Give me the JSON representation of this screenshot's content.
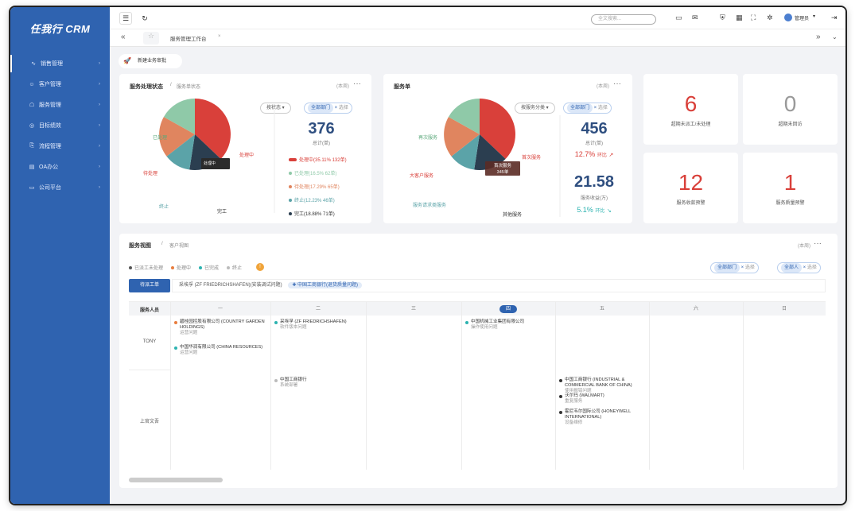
{
  "app": {
    "logo": "任我行 CRM"
  },
  "sidebar": {
    "items": [
      {
        "label": "销售管理",
        "icon": "chart-line-icon"
      },
      {
        "label": "客户管理",
        "icon": "user-icon"
      },
      {
        "label": "服务管理",
        "icon": "service-icon"
      },
      {
        "label": "目标绩效",
        "icon": "target-icon"
      },
      {
        "label": "流程管理",
        "icon": "flow-icon"
      },
      {
        "label": "OA办公",
        "icon": "doc-icon"
      },
      {
        "label": "公司平台",
        "icon": "monitor-icon"
      }
    ]
  },
  "topbar": {
    "search_placeholder": "全文搜索...",
    "user": "管理员"
  },
  "tabs": {
    "current": "服务管理工作台",
    "close": "×"
  },
  "quick_action": {
    "label": "新建业务审批"
  },
  "status_card": {
    "title": "服务处理状态",
    "subtitle": "服务单状态",
    "range": "(本周)",
    "filter_status": "按状态",
    "filter_dept": "全部部门",
    "filter_btn": "选择",
    "total": "376",
    "total_label": "总计(单)",
    "pie_labels": [
      "已处理",
      "待处理",
      "终止",
      "完工",
      "处理中"
    ],
    "pie_tooltip": "处理中",
    "legend": [
      {
        "text": "处理中(35.11% 132单)",
        "color": "#d9403a"
      },
      {
        "text": "已处理(16.5% 62单)",
        "color": "#8fc9a8"
      },
      {
        "text": "待处理(17.29% 65单)",
        "color": "#e0855f"
      },
      {
        "text": "终止(12.23% 46单)",
        "color": "#5ba3a8"
      },
      {
        "text": "完工(18.88% 71单)",
        "color": "#2b3e50"
      }
    ]
  },
  "order_card": {
    "title": "服务单",
    "range": "(本周)",
    "filter_type": "按服务分类",
    "filter_dept": "全部部门",
    "filter_btn": "选择",
    "pie_labels": [
      "再次服务",
      "大客户服务",
      "服务请求类服务",
      "其他服务",
      "首次服务"
    ],
    "tooltip_title": "首次服务",
    "tooltip_value": "345单",
    "total": "456",
    "total_label": "总计(单)",
    "total_change": "12.7%",
    "total_change_label": "环比",
    "amount": "21.58",
    "amount_label": "服务收益(万)",
    "amount_change": "5.1%",
    "amount_change_label": "环比"
  },
  "kpis": [
    {
      "value": "6",
      "label": "超期未派工/未处理",
      "color": "#d9403a"
    },
    {
      "value": "0",
      "label": "超期未回访",
      "color": "#999999"
    },
    {
      "value": "12",
      "label": "服务收款预警",
      "color": "#d9403a"
    },
    {
      "value": "1",
      "label": "服务质量预警",
      "color": "#d9403a"
    }
  ],
  "calendar": {
    "title": "服务视图",
    "subtitle": "客户视图",
    "range": "(本周)",
    "status_legend": [
      {
        "label": "已派工未处理",
        "color": "#555555"
      },
      {
        "label": "处理中",
        "color": "#e87d3e"
      },
      {
        "label": "已完成",
        "color": "#2cb3b0"
      },
      {
        "label": "终止",
        "color": "#bbbbbb"
      }
    ],
    "warn_badge": "!",
    "dept_tag": "全部部门",
    "dept_btn": "选择",
    "person_tag": "全部人",
    "person_btn": "选择",
    "dispatch_btn": "待派工单",
    "dispatch_items": [
      "采埃孚 (ZF FRIEDRICHSHAFEN)(安装调试问题)",
      "中国工商银行(退货质量问题)"
    ],
    "header_first": "服务人员",
    "days": [
      "一",
      "二",
      "三",
      "四",
      "五",
      "六",
      "日"
    ],
    "today_index": 3,
    "rows": [
      "TONY",
      "上官文吾"
    ],
    "events": [
      {
        "row": 0,
        "col": 0,
        "line1": "碧桂园控股有限公司 (COUNTRY GARDEN HOLDINGS)",
        "line2": "运营问题",
        "color": "#e87d3e"
      },
      {
        "row": 0,
        "col": 0,
        "line1": "中国华润有限公司 (CHINA RESOURCES)",
        "line2": "运营问题",
        "color": "#2cb3b0"
      },
      {
        "row": 0,
        "col": 1,
        "line1": "采埃孚 (ZF FRIEDRICHSHAFEN)",
        "line2": "软件版本问题",
        "color": "#2cb3b0"
      },
      {
        "row": 0,
        "col": 3,
        "line1": "中国机械工业集团有限公司",
        "line2": "操作使用问题",
        "color": "#2cb3b0"
      },
      {
        "row": 1,
        "col": 1,
        "line1": "中国工商银行",
        "line2": "系统部署",
        "color": "#bbbbbb"
      },
      {
        "row": 1,
        "col": 4,
        "line1": "中国工商银行 (INDUSTRIAL & COMMERCIAL BANK OF CHINA)",
        "line2": "使用报错问题",
        "color": "#333333"
      },
      {
        "row": 1,
        "col": 4,
        "line1": "沃尔玛 (WALMART)",
        "line2": "重复服务",
        "color": "#333333"
      },
      {
        "row": 1,
        "col": 4,
        "line1": "霍尼韦尔国际公司 (HONEYWELL INTERNATIONAL)",
        "line2": "设备维修",
        "color": "#333333"
      }
    ]
  }
}
